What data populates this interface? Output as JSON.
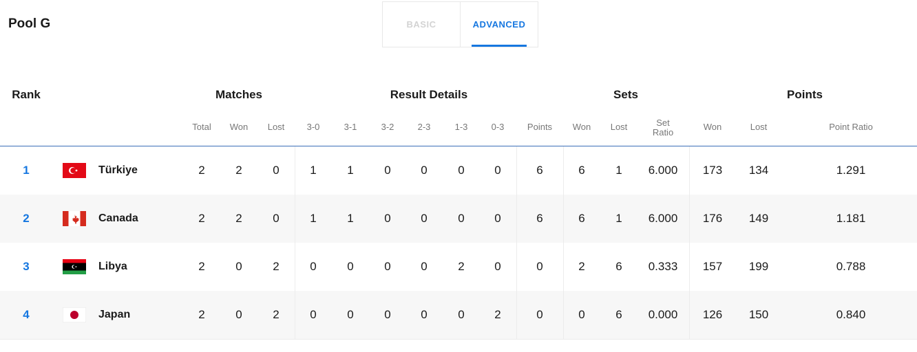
{
  "title": "Pool G",
  "tabs": [
    {
      "label": "BASIC",
      "active": false
    },
    {
      "label": "ADVANCED",
      "active": true
    }
  ],
  "accent_color": "#1677e0",
  "group_headers": {
    "rank": "Rank",
    "matches": "Matches",
    "result_details": "Result Details",
    "sets": "Sets",
    "points": "Points"
  },
  "sub_headers": [
    "Total",
    "Won",
    "Lost",
    "3-0",
    "3-1",
    "3-2",
    "2-3",
    "1-3",
    "0-3",
    "Points",
    "Won",
    "Lost",
    "Set Ratio",
    "Won",
    "Lost",
    "Point Ratio"
  ],
  "rows": [
    {
      "rank": "1",
      "flag": "turkey-flag",
      "team": "Türkiye",
      "values": [
        "2",
        "2",
        "0",
        "1",
        "1",
        "0",
        "0",
        "0",
        "0",
        "6",
        "6",
        "1",
        "6.000",
        "173",
        "134",
        "1.291"
      ]
    },
    {
      "rank": "2",
      "flag": "canada-flag",
      "team": "Canada",
      "values": [
        "2",
        "2",
        "0",
        "1",
        "1",
        "0",
        "0",
        "0",
        "0",
        "6",
        "6",
        "1",
        "6.000",
        "176",
        "149",
        "1.181"
      ]
    },
    {
      "rank": "3",
      "flag": "libya-flag",
      "team": "Libya",
      "values": [
        "2",
        "0",
        "2",
        "0",
        "0",
        "0",
        "0",
        "2",
        "0",
        "0",
        "2",
        "6",
        "0.333",
        "157",
        "199",
        "0.788"
      ]
    },
    {
      "rank": "4",
      "flag": "japan-flag",
      "team": "Japan",
      "values": [
        "2",
        "0",
        "2",
        "0",
        "0",
        "0",
        "0",
        "0",
        "2",
        "0",
        "0",
        "6",
        "0.000",
        "126",
        "150",
        "0.840"
      ]
    }
  ]
}
